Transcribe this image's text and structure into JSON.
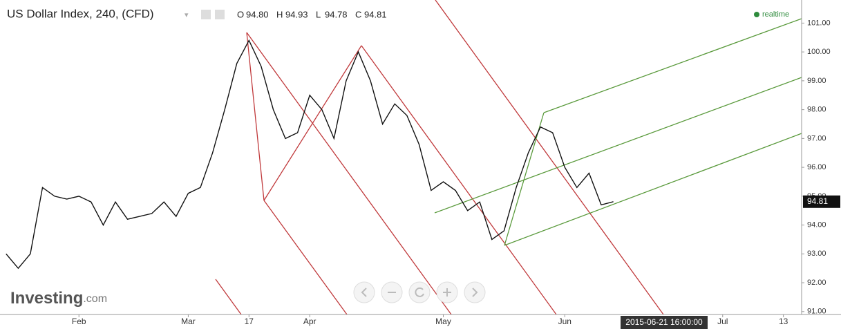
{
  "chart_data": {
    "type": "line",
    "title": "US Dollar Index, 240, (CFD)",
    "ohlc": [
      {
        "name": "O",
        "value": 94.8,
        "label": "94.80"
      },
      {
        "name": "H",
        "value": 94.93,
        "label": "94.93"
      },
      {
        "name": "L",
        "value": 94.78,
        "label": "94.78"
      },
      {
        "name": "C",
        "value": 94.81,
        "label": "94.81"
      }
    ],
    "status": "realtime",
    "last_value": 94.81,
    "cursor_date": "2015-06-21 16:00:00",
    "brand": {
      "name": "Investing",
      "suffix": ".com"
    },
    "categories": [
      null,
      null,
      null,
      null,
      null,
      null,
      "Feb",
      null,
      null,
      null,
      null,
      null,
      null,
      null,
      null,
      "Mar",
      null,
      null,
      null,
      null,
      "17",
      null,
      null,
      null,
      null,
      "Apr",
      null,
      null,
      null,
      null,
      null,
      null,
      null,
      null,
      null,
      null,
      "May",
      null,
      null,
      null,
      null,
      null,
      null,
      null,
      null,
      null,
      "Jun",
      null,
      null,
      null,
      null,
      null,
      null,
      null,
      null,
      null,
      null,
      null,
      null,
      "Jul",
      null,
      null,
      null,
      null,
      "13",
      null
    ],
    "series": [
      {
        "color": "#111111",
        "values": [
          93.0,
          92.5,
          93.0,
          95.3,
          95.0,
          94.9,
          95.0,
          94.8,
          94.0,
          94.8,
          94.2,
          94.3,
          94.4,
          94.8,
          94.3,
          95.1,
          95.3,
          96.5,
          98.0,
          99.6,
          100.4,
          99.5,
          98.0,
          97.0,
          97.2,
          98.5,
          98.0,
          97.0,
          99.0,
          100.0,
          99.0,
          97.5,
          98.2,
          97.8,
          96.8,
          95.2,
          95.5,
          95.2,
          94.5,
          94.8,
          93.5,
          93.8,
          95.3,
          96.5,
          97.4,
          97.2,
          96.0,
          95.3,
          95.8,
          94.7,
          94.81,
          null,
          null,
          null,
          null,
          null,
          null,
          null,
          null,
          null,
          null,
          null,
          null,
          null,
          null,
          null
        ]
      }
    ],
    "ylim": [
      90.9,
      101.8
    ],
    "yticks": [
      {
        "value": 91,
        "label": "91.00"
      },
      {
        "value": 92,
        "label": "92.00"
      },
      {
        "value": 93,
        "label": "93.00"
      },
      {
        "value": 94,
        "label": "94.00"
      },
      {
        "value": 95,
        "label": "95.00"
      },
      {
        "value": 96,
        "label": "96.00"
      },
      {
        "value": 97,
        "label": "97.00"
      },
      {
        "value": 98,
        "label": "98.00"
      },
      {
        "value": 99,
        "label": "99.00"
      },
      {
        "value": 100,
        "label": "100.00"
      },
      {
        "value": 101,
        "label": "101.00"
      }
    ]
  }
}
